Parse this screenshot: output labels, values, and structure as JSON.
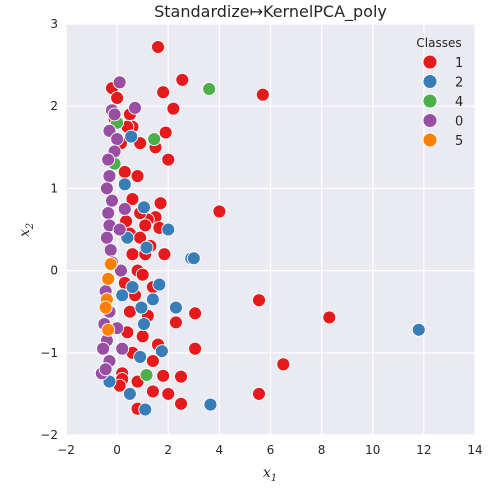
{
  "chart_data": {
    "type": "scatter",
    "title": "Standardize↦KernelPCA_poly",
    "xlabel": "x",
    "xlabel_sub": "1",
    "ylabel": "x",
    "ylabel_sub": "2",
    "xlim": [
      -2,
      14
    ],
    "ylim": [
      -2,
      3
    ],
    "xticks": [
      -2,
      0,
      2,
      4,
      6,
      8,
      10,
      12,
      14
    ],
    "yticks": [
      -2,
      -1,
      0,
      1,
      2,
      3
    ],
    "xtick_labels": [
      "−2",
      "0",
      "2",
      "4",
      "6",
      "8",
      "10",
      "12",
      "14"
    ],
    "ytick_labels": [
      "−2",
      "−1",
      "0",
      "1",
      "2",
      "3"
    ],
    "grid": true,
    "legend": {
      "title": "Classes",
      "placement": "top-right"
    },
    "series": [
      {
        "name": "1",
        "color": "#e41a1c",
        "points": [
          [
            1.6,
            2.72
          ],
          [
            2.55,
            2.32
          ],
          [
            1.8,
            2.17
          ],
          [
            5.7,
            2.14
          ],
          [
            2.2,
            1.97
          ],
          [
            -0.2,
            2.22
          ],
          [
            0.0,
            2.1
          ],
          [
            1.9,
            1.68
          ],
          [
            0.5,
            1.9
          ],
          [
            0.6,
            1.75
          ],
          [
            1.5,
            1.5
          ],
          [
            0.9,
            1.55
          ],
          [
            2.0,
            1.35
          ],
          [
            0.8,
            1.15
          ],
          [
            0.3,
            1.2
          ],
          [
            4.0,
            0.72
          ],
          [
            0.6,
            0.87
          ],
          [
            1.7,
            0.82
          ],
          [
            1.5,
            0.65
          ],
          [
            1.2,
            0.62
          ],
          [
            1.1,
            0.55
          ],
          [
            1.65,
            0.52
          ],
          [
            0.5,
            0.45
          ],
          [
            0.9,
            0.4
          ],
          [
            1.3,
            0.3
          ],
          [
            1.85,
            0.2
          ],
          [
            0.6,
            0.2
          ],
          [
            0.8,
            0.0
          ],
          [
            1.0,
            -0.05
          ],
          [
            1.4,
            -0.2
          ],
          [
            0.7,
            -0.3
          ],
          [
            0.5,
            -0.5
          ],
          [
            1.2,
            -0.55
          ],
          [
            2.3,
            -0.63
          ],
          [
            3.05,
            -0.52
          ],
          [
            5.55,
            -0.36
          ],
          [
            8.3,
            -0.57
          ],
          [
            0.4,
            -0.75
          ],
          [
            1.0,
            -0.8
          ],
          [
            1.6,
            -0.9
          ],
          [
            3.05,
            -0.95
          ],
          [
            0.6,
            -1.0
          ],
          [
            1.4,
            -1.1
          ],
          [
            6.5,
            -1.14
          ],
          [
            0.2,
            -1.25
          ],
          [
            1.8,
            -1.28
          ],
          [
            2.5,
            -1.29
          ],
          [
            0.8,
            -1.35
          ],
          [
            0.2,
            -1.32
          ],
          [
            5.55,
            -1.5
          ],
          [
            1.4,
            -1.47
          ],
          [
            2.0,
            -1.5
          ],
          [
            2.5,
            -1.62
          ],
          [
            0.8,
            -1.68
          ],
          [
            0.1,
            -1.4
          ],
          [
            0.3,
            -0.15
          ],
          [
            0.35,
            0.6
          ],
          [
            0.9,
            0.7
          ],
          [
            1.1,
            0.2
          ],
          [
            0.15,
            1.55
          ],
          [
            0.4,
            1.75
          ],
          [
            -0.1,
            1.85
          ]
        ]
      },
      {
        "name": "2",
        "color": "#377eb8",
        "points": [
          [
            0.55,
            1.63
          ],
          [
            1.05,
            0.77
          ],
          [
            2.0,
            0.5
          ],
          [
            1.15,
            0.28
          ],
          [
            2.9,
            0.15
          ],
          [
            3.0,
            0.15
          ],
          [
            1.65,
            -0.17
          ],
          [
            1.4,
            -0.35
          ],
          [
            0.95,
            -0.45
          ],
          [
            2.3,
            -0.45
          ],
          [
            1.05,
            -0.65
          ],
          [
            1.75,
            -0.98
          ],
          [
            0.9,
            -1.05
          ],
          [
            11.8,
            -0.72
          ],
          [
            0.5,
            -1.5
          ],
          [
            1.1,
            -1.69
          ],
          [
            3.65,
            -1.63
          ],
          [
            0.2,
            -0.3
          ],
          [
            -0.3,
            -1.35
          ],
          [
            0.4,
            0.4
          ],
          [
            0.6,
            -0.2
          ],
          [
            0.3,
            1.05
          ]
        ]
      },
      {
        "name": "4",
        "color": "#4daf4a",
        "points": [
          [
            3.6,
            2.21
          ],
          [
            1.45,
            1.6
          ],
          [
            1.15,
            -1.27
          ],
          [
            0.0,
            1.8
          ],
          [
            -0.1,
            1.3
          ]
        ]
      },
      {
        "name": "0",
        "color": "#984ea3",
        "points": [
          [
            0.1,
            2.29
          ],
          [
            0.7,
            1.98
          ],
          [
            -0.2,
            1.95
          ],
          [
            -0.3,
            1.7
          ],
          [
            0.0,
            1.6
          ],
          [
            -0.1,
            1.45
          ],
          [
            -0.35,
            1.35
          ],
          [
            -0.3,
            1.15
          ],
          [
            -0.4,
            1.0
          ],
          [
            -0.2,
            0.85
          ],
          [
            -0.35,
            0.7
          ],
          [
            -0.3,
            0.55
          ],
          [
            -0.4,
            0.4
          ],
          [
            -0.25,
            0.25
          ],
          [
            0.15,
            0.0
          ],
          [
            -0.35,
            -0.1
          ],
          [
            -0.45,
            -0.25
          ],
          [
            -0.3,
            -0.5
          ],
          [
            -0.5,
            -0.65
          ],
          [
            0.0,
            -0.7
          ],
          [
            -0.4,
            -0.85
          ],
          [
            -0.55,
            -0.95
          ],
          [
            -0.3,
            -1.1
          ],
          [
            -0.6,
            -1.25
          ],
          [
            -0.45,
            -1.2
          ],
          [
            0.3,
            0.75
          ],
          [
            0.1,
            0.5
          ],
          [
            -0.1,
            1.9
          ],
          [
            0.2,
            -0.95
          ],
          [
            -0.2,
            0.1
          ]
        ]
      },
      {
        "name": "5",
        "color": "#ff7f00",
        "points": [
          [
            -0.25,
            0.08
          ],
          [
            -0.35,
            -0.1
          ],
          [
            -0.4,
            -0.35
          ],
          [
            -0.45,
            -0.45
          ],
          [
            -0.35,
            -0.72
          ]
        ]
      }
    ]
  }
}
